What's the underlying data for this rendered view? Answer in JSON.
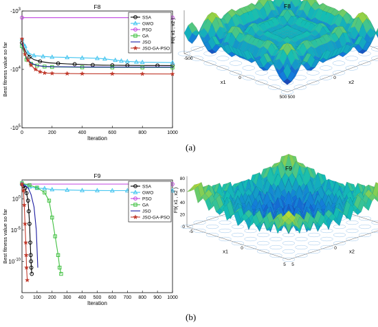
{
  "panels": [
    {
      "label": "(a)",
      "convergence": {
        "type": "line",
        "title": "F8",
        "xlabel": "Iteration",
        "ylabel": "Best fitness value so far",
        "xlim": [
          0,
          1000
        ],
        "xticks": [
          0,
          200,
          400,
          600,
          800,
          1000
        ],
        "ytick_labels": [
          "-10^3",
          "-10^4",
          "-10^5"
        ],
        "yscale": "log (negative values)",
        "legend_position": "top-right",
        "grid": false,
        "series": [
          {
            "name": "SSA",
            "color": "#000000",
            "marker": "circle",
            "x": [
              0,
              25,
              50,
              80,
              120,
              180,
              240,
              300,
              350,
              400,
              470,
              540,
              600,
              650,
              700,
              800,
              900,
              1000
            ],
            "y": [
              -3500,
              -5000,
              -6100,
              -6800,
              -7300,
              -7700,
              -7900,
              -8050,
              -8150,
              -8250,
              -8400,
              -8470,
              -8500,
              -8520,
              -8540,
              -8560,
              -8580,
              -8600
            ]
          },
          {
            "name": "GWO",
            "color": "#40c4f0",
            "marker": "triangle",
            "x": [
              0,
              20,
              40,
              80,
              140,
              200,
              300,
              400,
              500,
              550,
              620,
              660,
              700,
              760,
              800,
              1000
            ],
            "y": [
              -3000,
              -4000,
              -5200,
              -5800,
              -6000,
              -6150,
              -6250,
              -6350,
              -6450,
              -6600,
              -6950,
              -7150,
              -7300,
              -7450,
              -7550,
              -7650
            ]
          },
          {
            "name": "PSO",
            "color": "#c040e0",
            "marker": "circle",
            "x": [
              0,
              1000
            ],
            "y": [
              -1300,
              -1300
            ]
          },
          {
            "name": "GA",
            "color": "#40c040",
            "marker": "square",
            "x": [
              0,
              30,
              60,
              100,
              150,
              200,
              400,
              600,
              800,
              1000
            ],
            "y": [
              -4000,
              -6800,
              -8000,
              -8600,
              -8950,
              -9100,
              -9200,
              -9250,
              -9260,
              -9270
            ]
          },
          {
            "name": "JSO",
            "color": "#1a1aa0",
            "marker": "none",
            "x": [
              0,
              30,
              60,
              100,
              150,
              200,
              400,
              600,
              800,
              1000
            ],
            "y": [
              -3600,
              -6500,
              -7800,
              -8600,
              -8900,
              -9000,
              -9100,
              -9150,
              -9150,
              -9150
            ]
          },
          {
            "name": "JSO-GA-PSO",
            "color": "#c0392b",
            "marker": "star",
            "x": [
              0,
              20,
              40,
              60,
              90,
              120,
              150,
              200,
              300,
              400,
              600,
              800,
              1000
            ],
            "y": [
              -3000,
              -5500,
              -7000,
              -8500,
              -10000,
              -11000,
              -11500,
              -11700,
              -11800,
              -11850,
              -11900,
              -11950,
              -12000
            ]
          }
        ]
      },
      "surface": {
        "title": "F8",
        "zlabel": "F8( x1 , x2 )",
        "xlabel": "x1",
        "ylabel": "x2",
        "x_ticks": [
          "-500",
          "0",
          "500"
        ],
        "y_ticks": [
          "-500",
          "0",
          "500"
        ]
      }
    },
    {
      "label": "(b)",
      "convergence": {
        "type": "line",
        "title": "F9",
        "xlabel": "Iteration",
        "ylabel": "Best fitness value so far",
        "xlim": [
          0,
          1000
        ],
        "xticks": [
          0,
          100,
          200,
          300,
          400,
          500,
          600,
          700,
          800,
          900,
          1000
        ],
        "ylim": [
          1e-15,
          1000
        ],
        "yscale": "log",
        "ytick_labels": [
          "10^0",
          "10^-5",
          "10^-10"
        ],
        "legend_position": "top-right",
        "grid": false,
        "series": [
          {
            "name": "SSA",
            "color": "#000000",
            "marker": "circle",
            "x": [
              0,
              10,
              20,
              30,
              40,
              45,
              50,
              55,
              58,
              60,
              62,
              65
            ],
            "y": [
              200,
              120,
              50,
              8,
              0.5,
              0.01,
              0.0001,
              1e-07,
              1e-09,
              1e-10,
              1e-11,
              1e-12
            ]
          },
          {
            "name": "GWO",
            "color": "#40c4f0",
            "marker": "triangle",
            "x": [
              0,
              50,
              100,
              150,
              200,
              300,
              400,
              500,
              600,
              700,
              800,
              900,
              1000
            ],
            "y": [
              300,
              80,
              50,
              45,
              30,
              25,
              22,
              21,
              20,
              20,
              20,
              20,
              20
            ]
          },
          {
            "name": "PSO",
            "color": "#c040e0",
            "marker": "circle",
            "x": [
              0,
              1000
            ],
            "y": [
              220,
              220
            ]
          },
          {
            "name": "GA",
            "color": "#40c040",
            "marker": "square",
            "x": [
              0,
              50,
              100,
              150,
              180,
              200,
              220,
              240,
              250,
              260
            ],
            "y": [
              300,
              150,
              60,
              10,
              0.5,
              0.001,
              1e-06,
              1e-09,
              1e-11,
              1e-12
            ]
          },
          {
            "name": "JSO",
            "color": "#1a1aa0",
            "marker": "none",
            "x": [
              0,
              40,
              60,
              80,
              95,
              100,
              105
            ],
            "y": [
              250,
              60,
              5,
              0.05,
              1e-05,
              1e-08,
              1e-11
            ]
          },
          {
            "name": "JSO-GA-PSO",
            "color": "#c0392b",
            "marker": "star",
            "x": [
              0,
              10,
              15,
              20,
              25,
              28,
              30,
              35
            ],
            "y": [
              200,
              20,
              0.1,
              0.0001,
              1e-07,
              1e-09,
              1e-11,
              1e-13
            ]
          }
        ]
      },
      "surface": {
        "title": "F9",
        "zlabel": "F9( x1 , x2 )",
        "xlabel": "x1",
        "ylabel": "x2",
        "z_ticks": [
          "0",
          "20",
          "40",
          "60",
          "80"
        ],
        "x_ticks": [
          "-5",
          "0",
          "5"
        ],
        "y_ticks": [
          "-5",
          "0",
          "5"
        ]
      }
    }
  ]
}
